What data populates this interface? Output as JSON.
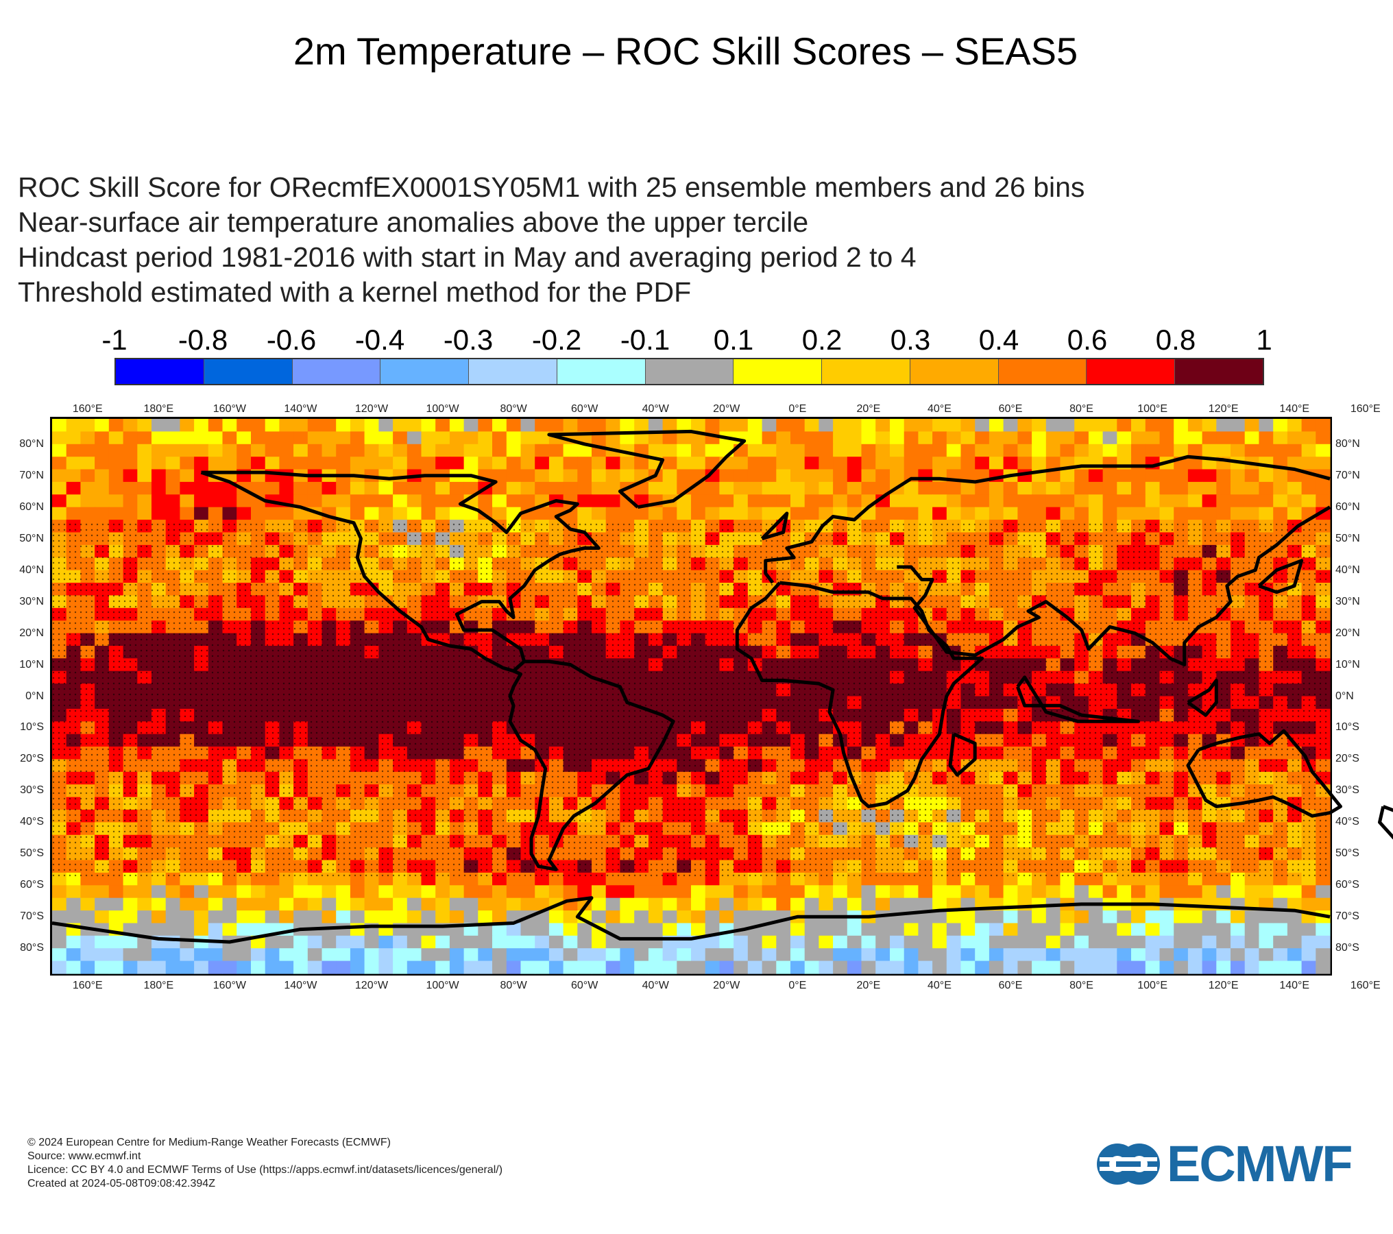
{
  "title": "2m Temperature – ROC Skill Scores – SEAS5",
  "subtitle_lines": [
    "ROC Skill Score for ORecmfEX0001SY05M1 with 25 ensemble members and 26 bins",
    "Near-surface air temperature anomalies above the upper tercile",
    "Hindcast period 1981-2016 with start in May and averaging period  2 to  4",
    "Threshold estimated with a kernel method for the PDF"
  ],
  "colorbar": {
    "labels": [
      "-1",
      "-0.8",
      "-0.6",
      "-0.4",
      "-0.3",
      "-0.2",
      "-0.1",
      "0.1",
      "0.2",
      "0.3",
      "0.4",
      "0.6",
      "0.8",
      "1"
    ],
    "colors": [
      "#0000ff",
      "#0066dd",
      "#7799ff",
      "#66b2ff",
      "#aad4ff",
      "#aaffff",
      "#a8a8a8",
      "#ffff00",
      "#ffcc00",
      "#ffaa00",
      "#ff7700",
      "#ff0000",
      "#6e0016"
    ]
  },
  "map": {
    "lon_labels": [
      "160°E",
      "180°E",
      "160°W",
      "140°W",
      "120°W",
      "100°W",
      "80°W",
      "60°W",
      "40°W",
      "20°W",
      "0°E",
      "20°E",
      "40°E",
      "60°E",
      "80°E",
      "100°E",
      "120°E",
      "140°E",
      "160°E"
    ],
    "lat_labels": [
      "80°N",
      "70°N",
      "60°N",
      "50°N",
      "40°N",
      "30°N",
      "20°N",
      "10°N",
      "0°N",
      "10°S",
      "20°S",
      "30°S",
      "40°S",
      "50°S",
      "60°S",
      "70°S",
      "80°S"
    ],
    "projection": "equirectangular",
    "lon_range": [
      150,
      510
    ],
    "lat_range": [
      -88,
      88
    ],
    "field": "ROC skill score, gridded, dotted where significant",
    "coastline_color": "#000000"
  },
  "footer": {
    "lines": [
      "© 2024 European Centre for Medium-Range Weather Forecasts (ECMWF)",
      "Source: www.ecmwf.int",
      "Licence: CC BY 4.0 and ECMWF Terms of Use (https://apps.ecmwf.int/datasets/licences/general/)",
      "Created at 2024-05-08T09:08:42.394Z"
    ]
  },
  "logo": {
    "text": "ECMWF",
    "color": "#1b6aa5"
  }
}
